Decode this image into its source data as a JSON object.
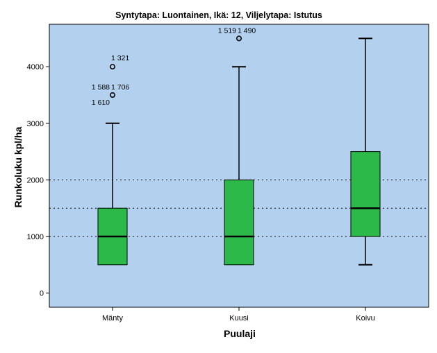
{
  "chart_data": {
    "type": "box",
    "title": "Syntytapa: Luontainen, Ikä: 12, Viljelytapa: Istutus",
    "xlabel": "Puulaji",
    "ylabel": "Runkoluku kpl/ha",
    "ylim": [
      -250,
      4750
    ],
    "yticks": [
      0,
      1000,
      2000,
      3000,
      4000
    ],
    "reference_lines": [
      1000,
      1500,
      2000
    ],
    "categories": [
      "Mänty",
      "Kuusi",
      "Koivu"
    ],
    "boxes": [
      {
        "category": "Mänty",
        "whisker_low": 500,
        "q1": 500,
        "median": 1000,
        "q3": 1500,
        "whisker_high": 3000,
        "outliers": [
          {
            "value": 4000,
            "label": "1 321",
            "label_pos": "right"
          },
          {
            "value": 3500,
            "label": "1 588",
            "label_pos": "upper-left"
          },
          {
            "value": 3500,
            "label": "1 706",
            "label_pos": "upper-right"
          },
          {
            "value": 3500,
            "label": "1 610",
            "label_pos": "lower-left"
          }
        ]
      },
      {
        "category": "Kuusi",
        "whisker_low": 500,
        "q1": 500,
        "median": 1000,
        "q3": 2000,
        "whisker_high": 4000,
        "outliers": [
          {
            "value": 4500,
            "label": "1 519",
            "label_pos": "upper-left"
          },
          {
            "value": 4500,
            "label": "1 490",
            "label_pos": "upper-right"
          }
        ]
      },
      {
        "category": "Koivu",
        "whisker_low": 500,
        "q1": 1000,
        "median": 1500,
        "q3": 2500,
        "whisker_high": 4500,
        "outliers": []
      }
    ],
    "colors": {
      "plot_background": "#b3d1ee",
      "box_fill": "#2db84a",
      "box_stroke": "#000000",
      "reference_line": "#000000"
    },
    "grid": false,
    "legend": "none"
  }
}
